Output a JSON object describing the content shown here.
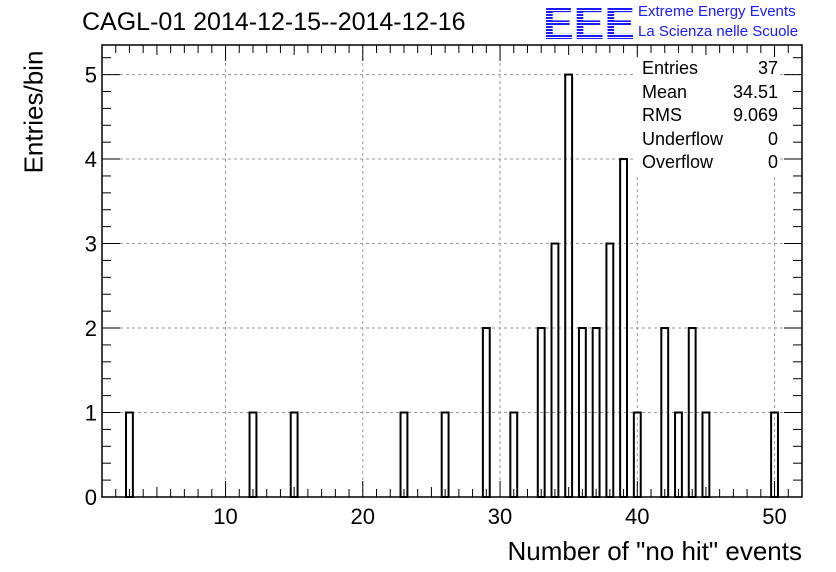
{
  "header": {
    "title": "CAGL-01 2014-12-15--2014-12-16",
    "logo_text": "EEE",
    "logo_line1": "Extreme Energy Events",
    "logo_line2": "La Scienza nelle Scuole",
    "logo_color": "#1a1aff"
  },
  "stats": [
    {
      "label": "Entries",
      "value": "37"
    },
    {
      "label": "Mean",
      "value": "34.51"
    },
    {
      "label": "RMS",
      "value": "9.069"
    },
    {
      "label": "Underflow",
      "value": "0"
    },
    {
      "label": "Overflow",
      "value": "0"
    }
  ],
  "chart_data": {
    "type": "bar",
    "xlabel": "Number of \"no hit\" events",
    "ylabel": "Entries/bin",
    "xlim": [
      1,
      52
    ],
    "ylim": [
      0,
      5.35
    ],
    "grid": true,
    "bin_width": 0.5,
    "x_ticks": [
      10,
      20,
      30,
      40,
      50
    ],
    "y_ticks": [
      0,
      1,
      2,
      3,
      4,
      5
    ],
    "bins": [
      {
        "x": 3,
        "value": 1
      },
      {
        "x": 12,
        "value": 1
      },
      {
        "x": 15,
        "value": 1
      },
      {
        "x": 23,
        "value": 1
      },
      {
        "x": 26,
        "value": 1
      },
      {
        "x": 29,
        "value": 2
      },
      {
        "x": 31,
        "value": 1
      },
      {
        "x": 33,
        "value": 2
      },
      {
        "x": 34,
        "value": 3
      },
      {
        "x": 35,
        "value": 5
      },
      {
        "x": 36,
        "value": 2
      },
      {
        "x": 37,
        "value": 2
      },
      {
        "x": 38,
        "value": 3
      },
      {
        "x": 39,
        "value": 4
      },
      {
        "x": 40,
        "value": 1
      },
      {
        "x": 42,
        "value": 2
      },
      {
        "x": 43,
        "value": 1
      },
      {
        "x": 44,
        "value": 2
      },
      {
        "x": 45,
        "value": 1
      },
      {
        "x": 50,
        "value": 1
      }
    ]
  }
}
